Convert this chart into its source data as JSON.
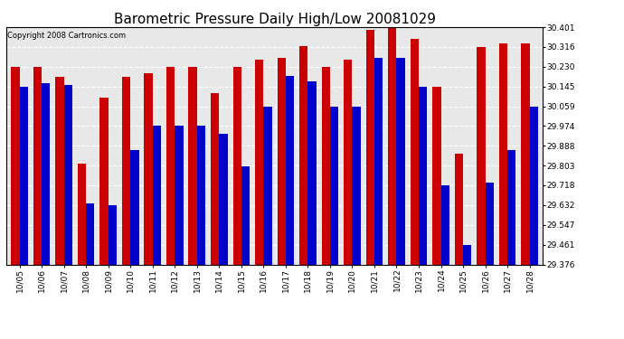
{
  "title": "Barometric Pressure Daily High/Low 20081029",
  "copyright": "Copyright 2008 Cartronics.com",
  "dates": [
    "10/05",
    "10/06",
    "10/07",
    "10/08",
    "10/09",
    "10/10",
    "10/11",
    "10/12",
    "10/13",
    "10/14",
    "10/15",
    "10/16",
    "10/17",
    "10/18",
    "10/19",
    "10/20",
    "10/21",
    "10/22",
    "10/23",
    "10/24",
    "10/25",
    "10/26",
    "10/27",
    "10/28"
  ],
  "highs": [
    30.23,
    30.23,
    30.185,
    29.81,
    30.095,
    30.185,
    30.2,
    30.23,
    30.23,
    30.115,
    30.23,
    30.26,
    30.27,
    30.32,
    30.23,
    30.26,
    30.39,
    30.401,
    30.35,
    30.145,
    29.855,
    30.316,
    30.33,
    30.33
  ],
  "lows": [
    30.145,
    30.16,
    30.15,
    29.64,
    29.63,
    29.87,
    29.975,
    29.975,
    29.975,
    29.94,
    29.8,
    30.059,
    30.19,
    30.165,
    30.059,
    30.059,
    30.27,
    30.27,
    30.145,
    29.718,
    29.461,
    29.73,
    29.87,
    30.059
  ],
  "high_color": "#cc0000",
  "low_color": "#0000cc",
  "bg_color": "#ffffff",
  "plot_bg_color": "#e8e8e8",
  "grid_color": "#ffffff",
  "ymin": 29.376,
  "ymax": 30.401,
  "yticks": [
    29.376,
    29.461,
    29.547,
    29.632,
    29.718,
    29.803,
    29.888,
    29.974,
    30.059,
    30.145,
    30.23,
    30.316,
    30.401
  ],
  "bar_width": 0.38,
  "title_fontsize": 11,
  "tick_fontsize": 6.5,
  "copyright_fontsize": 6
}
